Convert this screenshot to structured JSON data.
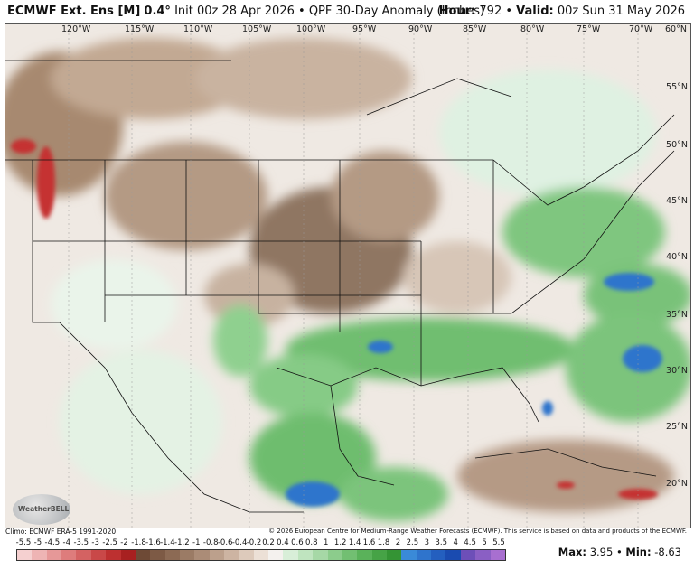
{
  "header": {
    "model": "ECMWF Ext. Ens [M]",
    "resolution": "0.4°",
    "init": "Init 00z 28 Apr 2026",
    "product": "QPF 30-Day Anomaly (Inches)",
    "hour_label": "Hour:",
    "hour_value": "792",
    "valid_label": "Valid:",
    "valid_value": "00z Sun 31 May 2026"
  },
  "lon_labels": [
    "120°W",
    "115°W",
    "110°W",
    "105°W",
    "100°W",
    "95°W",
    "90°W",
    "85°W",
    "80°W",
    "75°W",
    "70°W",
    "60°N"
  ],
  "lat_labels": [
    "55°N",
    "50°N",
    "45°N",
    "40°N",
    "35°N",
    "30°N",
    "25°N",
    "20°N"
  ],
  "footer": {
    "climo": "Climo: ECMWF ERA-5 1991-2020",
    "credit": "© 2026 European Centre for Medium-Range Weather Forecasts (ECMWF). This service is based on data and products of the ECMWF.",
    "logo": "WeatherBELL"
  },
  "legend": {
    "ticks": [
      "-5.5",
      "-5",
      "-4.5",
      "-4",
      "-3.5",
      "-3",
      "-2.5",
      "-2",
      "-1.8",
      "-1.6",
      "-1.4",
      "-1.2",
      "-1",
      "-0.8",
      "-0.6",
      "-0.4",
      "-0.2",
      "0.2",
      "0.4",
      "0.6",
      "0.8",
      "1",
      "1.2",
      "1.4",
      "1.6",
      "1.8",
      "2",
      "2.5",
      "3",
      "3.5",
      "4",
      "4.5",
      "5",
      "5.5"
    ],
    "colors": [
      "#f5d0d0",
      "#eeb4b4",
      "#e69898",
      "#de7c7c",
      "#d46262",
      "#c94848",
      "#bd3030",
      "#a82020",
      "#6e4a36",
      "#7d5a45",
      "#8c6a54",
      "#9b7b65",
      "#ab8c77",
      "#bca08c",
      "#cdb4a2",
      "#ddcabb",
      "#ece0d6",
      "#f4f1ee",
      "#d8eed8",
      "#bfe4bf",
      "#a6d8a6",
      "#8ccc8c",
      "#72bf72",
      "#5ab25a",
      "#46a346",
      "#349434",
      "#3a8ad8",
      "#2f74cc",
      "#245fbf",
      "#1a4bb0",
      "#6d4fb8",
      "#8a5fc4",
      "#a86fd0"
    ],
    "max_label": "Max:",
    "max_value": "3.95",
    "min_label": "Min:",
    "min_value": "-8.63"
  }
}
